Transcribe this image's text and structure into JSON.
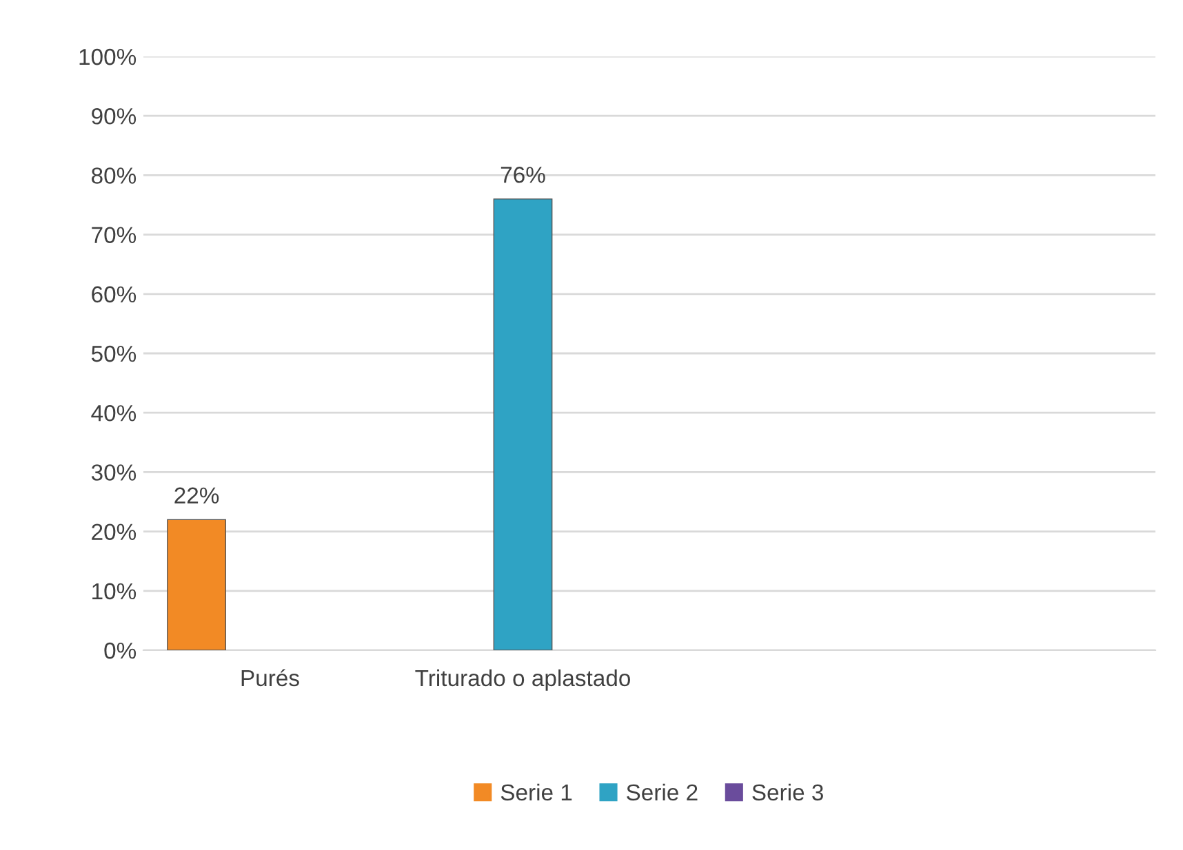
{
  "chart_data": {
    "type": "bar",
    "categories": [
      "Purés",
      "Triturado o aplastado",
      null,
      null
    ],
    "series": [
      {
        "name": "Serie 1",
        "color": "#f28a25",
        "values": [
          22,
          null,
          null,
          null
        ],
        "value_labels": [
          "22%",
          null,
          null,
          null
        ]
      },
      {
        "name": "Serie 2",
        "color": "#2fa3c4",
        "values": [
          null,
          76,
          null,
          null
        ],
        "value_labels": [
          null,
          "76%",
          null,
          null
        ]
      },
      {
        "name": "Serie 3",
        "color": "#6a4c9c",
        "values": [
          null,
          null,
          null,
          null
        ]
      }
    ],
    "ylim": [
      0,
      100
    ],
    "yticks": [
      {
        "value": 0,
        "label": "0%"
      },
      {
        "value": 10,
        "label": "10%"
      },
      {
        "value": 20,
        "label": "20%"
      },
      {
        "value": 30,
        "label": "30%"
      },
      {
        "value": 40,
        "label": "40%"
      },
      {
        "value": 50,
        "label": "50%"
      },
      {
        "value": 60,
        "label": "60%"
      },
      {
        "value": 70,
        "label": "70%"
      },
      {
        "value": 80,
        "label": "80%"
      },
      {
        "value": 90,
        "label": "90%"
      },
      {
        "value": 100,
        "label": "100%"
      }
    ],
    "grid": "y",
    "legend": "bottom"
  }
}
